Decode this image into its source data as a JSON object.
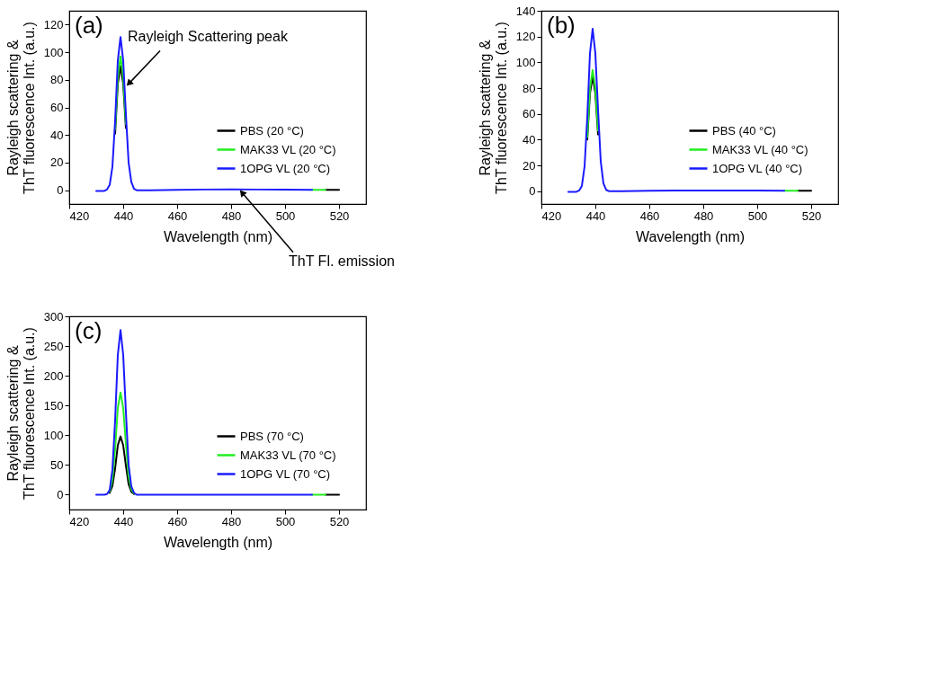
{
  "chart_data": [
    {
      "type": "line",
      "title": "(a)",
      "xlabel": "Wavelength (nm)",
      "ylabel": "Rayleigh scattering &\nThT fluorescence Int. (a.u.)",
      "xlim": [
        420,
        530
      ],
      "xticks": [
        420,
        440,
        460,
        480,
        500,
        520
      ],
      "ylim": [
        -10,
        130
      ],
      "yticks": [
        0,
        20,
        40,
        60,
        80,
        100,
        120
      ],
      "grid": false,
      "legend": "bottom right",
      "annotations": [
        {
          "text": "Rayleigh Scattering peak",
          "x": 441,
          "y": 75
        },
        {
          "text": "ThT Fl. emission",
          "x": 483,
          "y": 0.6
        }
      ],
      "series": [
        {
          "name": "PBS (20 °C)",
          "color": "#000000",
          "x": [
            437,
            438,
            439,
            440,
            441,
            442,
            515,
            520
          ],
          "values": [
            41,
            77,
            90,
            77,
            45,
            null,
            0.3,
            0.3
          ]
        },
        {
          "name": "MAK33 VL (20 °C)",
          "color": "#22ee22",
          "x": [
            437,
            438,
            439,
            440,
            441,
            442,
            510,
            515
          ],
          "values": [
            44,
            82,
            97,
            82,
            48,
            null,
            0.3,
            0.3
          ]
        },
        {
          "name": "1OPG VL (20 °C)",
          "color": "#1a1aff",
          "x": [
            430,
            433,
            434,
            435,
            436,
            437,
            438,
            439,
            440,
            441,
            442,
            443,
            444,
            445,
            450,
            460,
            470,
            480,
            490,
            500,
            510
          ],
          "values": [
            -0.5,
            -0.5,
            0.5,
            4,
            17,
            50,
            94,
            111,
            94,
            55,
            20,
            6,
            1,
            0,
            0,
            0.3,
            0.5,
            0.6,
            0.5,
            0.4,
            0.3
          ]
        }
      ]
    },
    {
      "type": "line",
      "title": "(b)",
      "xlabel": "Wavelength (nm)",
      "ylabel": "Rayleigh scattering &\nThT fluorescence Int. (a.u.)",
      "xlim": [
        420,
        530
      ],
      "xticks": [
        420,
        440,
        460,
        480,
        500,
        520
      ],
      "ylim": [
        -10,
        140
      ],
      "yticks": [
        0,
        20,
        40,
        60,
        80,
        100,
        120,
        140
      ],
      "grid": false,
      "legend": "bottom right",
      "series": [
        {
          "name": "PBS (40 °C)",
          "color": "#000000",
          "x": [
            437,
            438,
            439,
            440,
            441,
            442,
            515,
            520
          ],
          "values": [
            40,
            76,
            89,
            76,
            44,
            null,
            0.3,
            0.3
          ]
        },
        {
          "name": "MAK33 VL (40 °C)",
          "color": "#22ee22",
          "x": [
            437,
            438,
            439,
            440,
            441,
            442,
            510,
            515
          ],
          "values": [
            42,
            80,
            94,
            80,
            47,
            null,
            0.3,
            0.3
          ]
        },
        {
          "name": "1OPG VL (40 °C)",
          "color": "#1a1aff",
          "x": [
            430,
            433,
            434,
            435,
            436,
            437,
            438,
            439,
            440,
            441,
            442,
            443,
            444,
            445,
            450,
            460,
            470,
            480,
            490,
            500,
            510
          ],
          "values": [
            -0.5,
            -0.5,
            0.5,
            4,
            19,
            57,
            107,
            126,
            107,
            63,
            23,
            6,
            1,
            0,
            0,
            0.3,
            0.4,
            0.5,
            0.4,
            0.5,
            0.3
          ]
        }
      ]
    },
    {
      "type": "line",
      "title": "(c)",
      "xlabel": "Wavelength (nm)",
      "ylabel": "Rayleigh scattering &\nThT fluorescence Int. (a.u.)",
      "xlim": [
        420,
        530
      ],
      "xticks": [
        420,
        440,
        460,
        480,
        500,
        520
      ],
      "ylim": [
        -25,
        300
      ],
      "yticks": [
        0,
        50,
        100,
        150,
        200,
        250,
        300
      ],
      "grid": false,
      "legend": "bottom right",
      "series": [
        {
          "name": "PBS (70 °C)",
          "color": "#000000",
          "x": [
            435,
            436,
            437,
            438,
            439,
            440,
            441,
            442,
            443,
            444,
            445,
            515,
            520
          ],
          "values": [
            3,
            15,
            44,
            83,
            98,
            83,
            49,
            18,
            5,
            1,
            null,
            0,
            0
          ]
        },
        {
          "name": "MAK33 VL (70 °C)",
          "color": "#22ee22",
          "x": [
            435,
            436,
            437,
            438,
            439,
            440,
            441,
            442,
            443,
            444,
            445,
            510,
            515
          ],
          "values": [
            5,
            26,
            77,
            146,
            172,
            146,
            86,
            31,
            9,
            2,
            null,
            0,
            0
          ]
        },
        {
          "name": "1OPG VL (70 °C)",
          "color": "#1a1aff",
          "x": [
            430,
            433,
            434,
            435,
            436,
            437,
            438,
            439,
            440,
            441,
            442,
            443,
            444,
            445,
            450,
            460,
            470,
            480,
            490,
            500,
            510
          ],
          "values": [
            0,
            0,
            1,
            8,
            42,
            125,
            235,
            277,
            235,
            139,
            50,
            14,
            3,
            0,
            0,
            0,
            0,
            0,
            0,
            0,
            0
          ]
        }
      ]
    }
  ]
}
